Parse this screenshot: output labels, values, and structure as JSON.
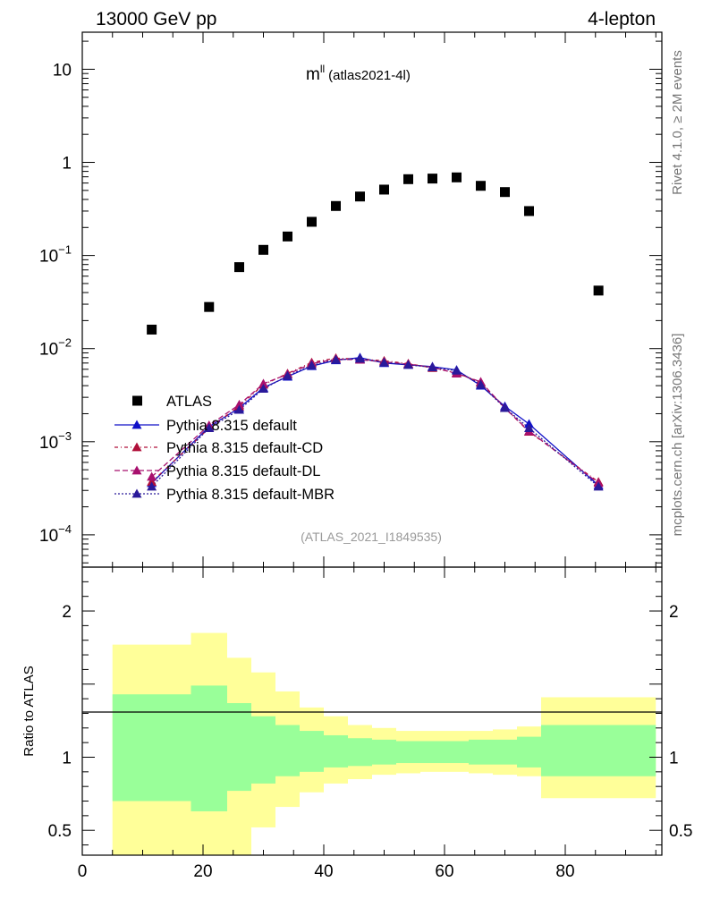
{
  "header": {
    "left": "13000 GeV pp",
    "right": "4-lepton"
  },
  "side_labels": {
    "rivet": "Rivet 4.1.0, ≥ 2M events",
    "mcplots": "mcplots.cern.ch [arXiv:1306.3436]"
  },
  "chart_data": {
    "type": "line",
    "title": "m",
    "title_superscript": "ll",
    "title_suffix": "(atlas2021-4l)",
    "analysis_id": "(ATLAS_2021_I1849535)",
    "xlabel": "",
    "xlim": [
      0,
      96
    ],
    "x_ticks": [
      0,
      20,
      40,
      60,
      80
    ],
    "main_panel": {
      "yscale": "log",
      "ylim": [
        4.5e-05,
        25
      ],
      "y_ticks": [
        {
          "value": 10,
          "label": "10",
          "exp": ""
        },
        {
          "value": 1,
          "label": "1",
          "exp": ""
        },
        {
          "value": 0.1,
          "label": "10",
          "exp": "−1"
        },
        {
          "value": 0.01,
          "label": "10",
          "exp": "−2"
        },
        {
          "value": 0.001,
          "label": "10",
          "exp": "−3"
        },
        {
          "value": 0.0001,
          "label": "10",
          "exp": "−4"
        }
      ],
      "series": [
        {
          "name": "ATLAS",
          "marker": "square",
          "color": "#000000",
          "line": "none",
          "x": [
            11.5,
            21,
            26,
            30,
            34,
            38,
            42,
            46,
            50,
            54,
            58,
            62,
            66,
            70,
            74,
            85.5
          ],
          "values": [
            0.016,
            0.028,
            0.075,
            0.115,
            0.16,
            0.23,
            0.34,
            0.43,
            0.51,
            0.66,
            0.67,
            0.69,
            0.56,
            0.48,
            0.3,
            0.042
          ]
        },
        {
          "name": "Pythia 8.315 default",
          "marker": "triangle",
          "color": "#1010c8",
          "dash": "solid",
          "x": [
            11.5,
            21,
            26,
            30,
            34,
            38,
            42,
            46,
            50,
            54,
            58,
            62,
            66,
            70,
            74,
            85.5
          ],
          "values": [
            0.00036,
            0.00145,
            0.0023,
            0.0038,
            0.005,
            0.0065,
            0.0075,
            0.008,
            0.007,
            0.0067,
            0.0064,
            0.0059,
            0.004,
            0.0024,
            0.00155,
            0.00034
          ]
        },
        {
          "name": "Pythia 8.315 default-CD",
          "marker": "triangle",
          "color": "#b0103a",
          "dash": "4,3,1,3",
          "x": [
            11.5,
            21,
            26,
            30,
            34,
            38,
            42,
            46,
            50,
            54,
            58,
            62,
            66,
            70,
            74,
            85.5
          ],
          "values": [
            0.00037,
            0.0014,
            0.0024,
            0.0041,
            0.0054,
            0.0071,
            0.0079,
            0.0077,
            0.0074,
            0.0069,
            0.0062,
            0.0055,
            0.0043,
            0.0023,
            0.00128,
            0.00037
          ]
        },
        {
          "name": "Pythia 8.315 default-DL",
          "marker": "triangle",
          "color": "#a8106e",
          "dash": "6,3",
          "x": [
            11.5,
            21,
            26,
            30,
            34,
            38,
            42,
            46,
            50,
            54,
            58,
            62,
            66,
            70,
            74,
            85.5
          ],
          "values": [
            0.00042,
            0.0015,
            0.0025,
            0.0042,
            0.0053,
            0.0069,
            0.0077,
            0.0076,
            0.0072,
            0.0068,
            0.0063,
            0.0054,
            0.0044,
            0.0023,
            0.0013,
            0.00036
          ]
        },
        {
          "name": "Pythia 8.315 default-MBR",
          "marker": "triangle",
          "color": "#2a1a9a",
          "dash": "2,2",
          "x": [
            11.5,
            21,
            26,
            30,
            34,
            38,
            42,
            46,
            50,
            54,
            58,
            62,
            66,
            70,
            74,
            85.5
          ],
          "values": [
            0.00033,
            0.0014,
            0.0022,
            0.0037,
            0.0051,
            0.0066,
            0.0076,
            0.0078,
            0.0071,
            0.0067,
            0.0063,
            0.0058,
            0.0041,
            0.0023,
            0.0014,
            0.00033
          ]
        }
      ]
    },
    "ratio_panel": {
      "ylabel": "Ratio to ATLAS",
      "ylim": [
        0.33,
        2.3
      ],
      "y_ticks": [
        {
          "value": 0.5,
          "label": "0.5"
        },
        {
          "value": 1,
          "label": "1"
        },
        {
          "value": 2,
          "label": "2"
        }
      ],
      "bands": {
        "inner_color": "#99ff99",
        "outer_color": "#ffff99",
        "bins": [
          {
            "x0": 5,
            "x1": 18,
            "inner": [
              0.7,
              1.43
            ],
            "outer": [
              0.0,
              1.77
            ]
          },
          {
            "x0": 18,
            "x1": 24,
            "inner": [
              0.63,
              1.49
            ],
            "outer": [
              0.0,
              1.85
            ]
          },
          {
            "x0": 24,
            "x1": 28,
            "inner": [
              0.77,
              1.37
            ],
            "outer": [
              0.0,
              1.68
            ]
          },
          {
            "x0": 28,
            "x1": 32,
            "inner": [
              0.82,
              1.28
            ],
            "outer": [
              0.52,
              1.58
            ]
          },
          {
            "x0": 32,
            "x1": 36,
            "inner": [
              0.87,
              1.22
            ],
            "outer": [
              0.66,
              1.45
            ]
          },
          {
            "x0": 36,
            "x1": 40,
            "inner": [
              0.9,
              1.18
            ],
            "outer": [
              0.76,
              1.34
            ]
          },
          {
            "x0": 40,
            "x1": 44,
            "inner": [
              0.93,
              1.15
            ],
            "outer": [
              0.82,
              1.28
            ]
          },
          {
            "x0": 44,
            "x1": 48,
            "inner": [
              0.94,
              1.13
            ],
            "outer": [
              0.85,
              1.22
            ]
          },
          {
            "x0": 48,
            "x1": 52,
            "inner": [
              0.95,
              1.12
            ],
            "outer": [
              0.88,
              1.2
            ]
          },
          {
            "x0": 52,
            "x1": 56,
            "inner": [
              0.96,
              1.11
            ],
            "outer": [
              0.89,
              1.18
            ]
          },
          {
            "x0": 56,
            "x1": 60,
            "inner": [
              0.96,
              1.11
            ],
            "outer": [
              0.9,
              1.18
            ]
          },
          {
            "x0": 60,
            "x1": 64,
            "inner": [
              0.96,
              1.11
            ],
            "outer": [
              0.9,
              1.18
            ]
          },
          {
            "x0": 64,
            "x1": 68,
            "inner": [
              0.95,
              1.12
            ],
            "outer": [
              0.89,
              1.18
            ]
          },
          {
            "x0": 68,
            "x1": 72,
            "inner": [
              0.95,
              1.12
            ],
            "outer": [
              0.88,
              1.19
            ]
          },
          {
            "x0": 72,
            "x1": 76,
            "inner": [
              0.93,
              1.14
            ],
            "outer": [
              0.87,
              1.21
            ]
          },
          {
            "x0": 76,
            "x1": 95,
            "inner": [
              0.87,
              1.22
            ],
            "outer": [
              0.72,
              1.41
            ]
          }
        ]
      }
    }
  }
}
